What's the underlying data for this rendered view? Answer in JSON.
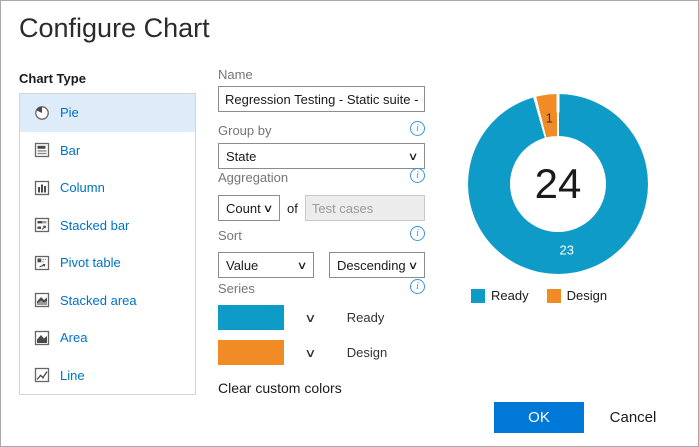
{
  "window": {
    "title": "Configure Chart"
  },
  "chart_type": {
    "label": "Chart Type",
    "items": [
      {
        "label": "Pie",
        "icon": "pie-icon",
        "selected": true
      },
      {
        "label": "Bar",
        "icon": "bar-icon",
        "selected": false
      },
      {
        "label": "Column",
        "icon": "column-icon",
        "selected": false
      },
      {
        "label": "Stacked bar",
        "icon": "stacked-bar-icon",
        "selected": false
      },
      {
        "label": "Pivot table",
        "icon": "pivot-table-icon",
        "selected": false
      },
      {
        "label": "Stacked area",
        "icon": "stacked-area-icon",
        "selected": false
      },
      {
        "label": "Area",
        "icon": "area-icon",
        "selected": false
      },
      {
        "label": "Line",
        "icon": "line-icon",
        "selected": false
      }
    ]
  },
  "form": {
    "name_label": "Name",
    "name_value": "Regression Testing - Static suite - Ch",
    "group_by_label": "Group by",
    "group_by_value": "State",
    "aggregation_label": "Aggregation",
    "aggregation_value": "Count",
    "aggregation_of": "of",
    "aggregation_field": "Test cases",
    "sort_label": "Sort",
    "sort_value": "Value",
    "sort_direction": "Descending",
    "series_label": "Series",
    "clear_colors": "Clear custom colors"
  },
  "chart_data": {
    "type": "pie",
    "donut": true,
    "categories": [
      "Ready",
      "Design"
    ],
    "values": [
      23,
      1
    ],
    "total": 24,
    "colors": [
      "#0F9BC8",
      "#F18B26"
    ],
    "value_label_colors": [
      "#ffffff",
      "#333333"
    ],
    "center_label": "24",
    "legend_position": "bottom"
  },
  "footer": {
    "ok": "OK",
    "cancel": "Cancel"
  },
  "colors": {
    "accent": "#0078D7",
    "link": "#0072C6",
    "selected_bg": "#DEECF9"
  }
}
